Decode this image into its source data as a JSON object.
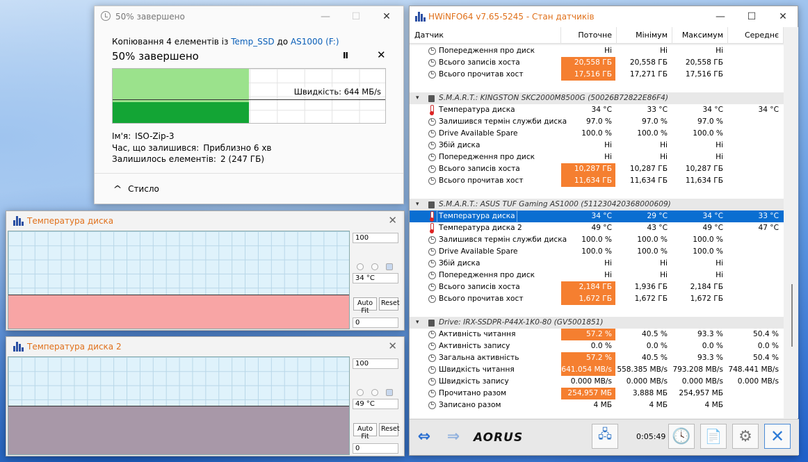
{
  "copy_dialog": {
    "title": "50% завершено",
    "subtitle_prefix": "Копіювання 4 елементів із ",
    "source": "Temp_SSD",
    "mid": " до ",
    "dest": "AS1000 (F:)",
    "heading": "50% завершено",
    "pause_label": "II",
    "cancel_label": "✕",
    "speed_label": "Швидкість: 644 МБ/s",
    "progress": 0.5,
    "name_label": "Ім'я:",
    "name_value": "ISO-Zip-3",
    "time_label": "Час, що залишився:",
    "time_value": "Приблизно 6 хв",
    "items_label": "Залишилось елементів:",
    "items_value": "2 (247 ГБ)",
    "less_label": "Стисло"
  },
  "graph1": {
    "title": "Температура диска",
    "max": "100",
    "current": "34 °C",
    "min": "0",
    "auto_fit": "Auto Fit",
    "reset": "Reset",
    "fill_color": "#f8a5a5",
    "level": 0.34
  },
  "graph2": {
    "title": "Температура диска 2",
    "max": "100",
    "current": "49 °C",
    "min": "0",
    "auto_fit": "Auto Fit",
    "reset": "Reset",
    "fill_color": "#a898a8",
    "level": 0.49
  },
  "hwinfo": {
    "title": "HWiNFO64 v7.65-5245 - Стан датчиків",
    "columns": [
      "Датчик",
      "Поточне",
      "Мінімум",
      "Максимум",
      "Середнє"
    ],
    "rows": [
      {
        "type": "row",
        "icon": "clock",
        "name": "Попередження про диск",
        "v": [
          "Ні",
          "Ні",
          "Ні",
          ""
        ]
      },
      {
        "type": "row",
        "icon": "clock",
        "name": "Всього записів хоста",
        "v": [
          "20,558 ГБ",
          "20,558 ГБ",
          "20,558 ГБ",
          ""
        ],
        "hi": true
      },
      {
        "type": "row",
        "icon": "clock",
        "name": "Всього прочитав хост",
        "v": [
          "17,516 ГБ",
          "17,271 ГБ",
          "17,516 ГБ",
          ""
        ],
        "hi": true
      },
      {
        "type": "gap"
      },
      {
        "type": "group",
        "name": "S.M.A.R.T.: KINGSTON SKC2000M8500G (50026B72822E86F4)"
      },
      {
        "type": "row",
        "icon": "therm",
        "name": "Температура диска",
        "v": [
          "34 °C",
          "33 °C",
          "34 °C",
          "34 °C"
        ]
      },
      {
        "type": "row",
        "icon": "clock",
        "name": "Залишився термін служби диска",
        "v": [
          "97.0 %",
          "97.0 %",
          "97.0 %",
          ""
        ]
      },
      {
        "type": "row",
        "icon": "clock",
        "name": "Drive Available Spare",
        "v": [
          "100.0 %",
          "100.0 %",
          "100.0 %",
          ""
        ]
      },
      {
        "type": "row",
        "icon": "clock",
        "name": "Збій диска",
        "v": [
          "Ні",
          "Ні",
          "Ні",
          ""
        ]
      },
      {
        "type": "row",
        "icon": "clock",
        "name": "Попередження про диск",
        "v": [
          "Ні",
          "Ні",
          "Ні",
          ""
        ]
      },
      {
        "type": "row",
        "icon": "clock",
        "name": "Всього записів хоста",
        "v": [
          "10,287 ГБ",
          "10,287 ГБ",
          "10,287 ГБ",
          ""
        ],
        "hi": true
      },
      {
        "type": "row",
        "icon": "clock",
        "name": "Всього прочитав хост",
        "v": [
          "11,634 ГБ",
          "11,634 ГБ",
          "11,634 ГБ",
          ""
        ],
        "hi": true
      },
      {
        "type": "gap"
      },
      {
        "type": "group",
        "name": "S.M.A.R.T.: ASUS TUF Gaming AS1000 (511230420368000609)"
      },
      {
        "type": "row",
        "icon": "therm",
        "name": "Температура диска",
        "v": [
          "34 °C",
          "29 °C",
          "34 °C",
          "33 °C"
        ],
        "sel": true
      },
      {
        "type": "row",
        "icon": "therm",
        "name": "Температура диска 2",
        "v": [
          "49 °C",
          "43 °C",
          "49 °C",
          "47 °C"
        ]
      },
      {
        "type": "row",
        "icon": "clock",
        "name": "Залишився термін служби диска",
        "v": [
          "100.0 %",
          "100.0 %",
          "100.0 %",
          ""
        ]
      },
      {
        "type": "row",
        "icon": "clock",
        "name": "Drive Available Spare",
        "v": [
          "100.0 %",
          "100.0 %",
          "100.0 %",
          ""
        ]
      },
      {
        "type": "row",
        "icon": "clock",
        "name": "Збій диска",
        "v": [
          "Ні",
          "Ні",
          "Ні",
          ""
        ]
      },
      {
        "type": "row",
        "icon": "clock",
        "name": "Попередження про диск",
        "v": [
          "Ні",
          "Ні",
          "Ні",
          ""
        ]
      },
      {
        "type": "row",
        "icon": "clock",
        "name": "Всього записів хоста",
        "v": [
          "2,184 ГБ",
          "1,936 ГБ",
          "2,184 ГБ",
          ""
        ],
        "hi": true
      },
      {
        "type": "row",
        "icon": "clock",
        "name": "Всього прочитав хост",
        "v": [
          "1,672 ГБ",
          "1,672 ГБ",
          "1,672 ГБ",
          ""
        ],
        "hi": true
      },
      {
        "type": "gap"
      },
      {
        "type": "group",
        "name": "Drive: IRX-SSDPR-P44X-1K0-80 (GV5001851)"
      },
      {
        "type": "row",
        "icon": "clock",
        "name": "Активність читання",
        "v": [
          "57.2 %",
          "40.5 %",
          "93.3 %",
          "50.4 %"
        ],
        "hi": true
      },
      {
        "type": "row",
        "icon": "clock",
        "name": "Активність запису",
        "v": [
          "0.0 %",
          "0.0 %",
          "0.0 %",
          "0.0 %"
        ]
      },
      {
        "type": "row",
        "icon": "clock",
        "name": "Загальна активність",
        "v": [
          "57.2 %",
          "40.5 %",
          "93.3 %",
          "50.4 %"
        ],
        "hi": true
      },
      {
        "type": "row",
        "icon": "clock",
        "name": "Швидкість читання",
        "v": [
          "641.054 MB/s",
          "558.385 MB/s",
          "793.208 MB/s",
          "748.441 MB/s"
        ],
        "hi": true
      },
      {
        "type": "row",
        "icon": "clock",
        "name": "Швидкість запису",
        "v": [
          "0.000 MB/s",
          "0.000 MB/s",
          "0.000 MB/s",
          "0.000 MB/s"
        ]
      },
      {
        "type": "row",
        "icon": "clock",
        "name": "Прочитано разом",
        "v": [
          "254,957 МБ",
          "3,888 МБ",
          "254,957 МБ",
          ""
        ],
        "hi": true
      },
      {
        "type": "row",
        "icon": "clock",
        "name": "Записано разом",
        "v": [
          "4 МБ",
          "4 МБ",
          "4 МБ",
          ""
        ]
      }
    ],
    "timer": "0:05:49",
    "brand": "AORUS",
    "accent": "#f57f30",
    "select_color": "#0a6ed1"
  }
}
